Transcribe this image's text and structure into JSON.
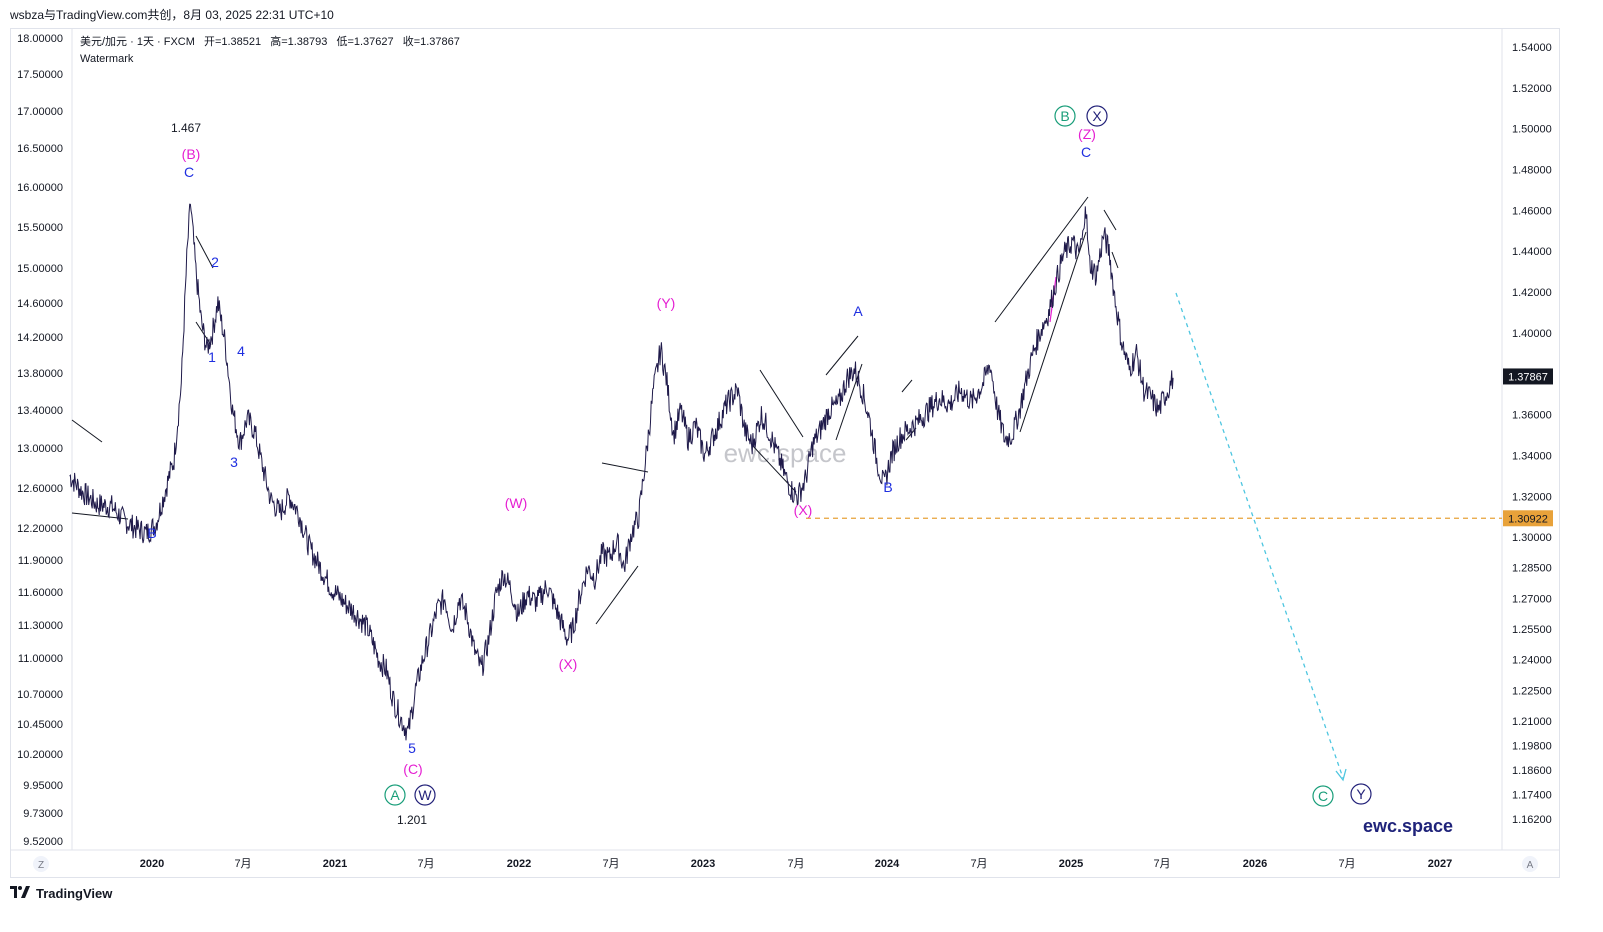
{
  "header": {
    "top_line": "wsbza与TradingView.com共创，8月 03, 2025 22:31 UTC+10",
    "symbol_line": "美元/加元 · 1天 · FXCM",
    "ohlc": [
      {
        "label": "开",
        "value": "=1.38521"
      },
      {
        "label": "高",
        "value": "=1.38793"
      },
      {
        "label": "低",
        "value": "=1.37627"
      },
      {
        "label": "收",
        "value": "=1.37867"
      }
    ],
    "indicator": "Watermark"
  },
  "footer": {
    "logo_text": "TradingView",
    "logo_icon": "tradingview-logo-icon"
  },
  "corner": {
    "left": "Z",
    "right": "A"
  },
  "watermarks": {
    "center": "ewc.space",
    "bottom_right": "ewc.space"
  },
  "colors": {
    "price_line": "#1f1a4a",
    "magenta": "#e51fd2",
    "blue": "#1f2fe0",
    "green": "#1a9e7a",
    "navy": "#24237a",
    "orange": "#e8a23a",
    "cyan": "#4ec6e0"
  },
  "chart_data": {
    "type": "line",
    "symbol": "USD/CAD",
    "interval": "1D",
    "right_axis": {
      "ticks": [
        "1.54000",
        "1.52000",
        "1.50000",
        "1.48000",
        "1.46000",
        "1.44000",
        "1.42000",
        "1.40000",
        "1.36000",
        "1.34000",
        "1.32000",
        "1.30000",
        "1.28500",
        "1.27000",
        "1.25500",
        "1.24000",
        "1.22500",
        "1.21000",
        "1.19800",
        "1.18600",
        "1.17400",
        "1.16200"
      ],
      "current_price": "1.37867",
      "level_price": "1.30922"
    },
    "left_axis": {
      "ticks": [
        "18.00000",
        "17.50000",
        "17.00000",
        "16.50000",
        "16.00000",
        "15.50000",
        "15.00000",
        "14.60000",
        "14.20000",
        "13.80000",
        "13.40000",
        "13.00000",
        "12.60000",
        "12.20000",
        "11.90000",
        "11.60000",
        "11.30000",
        "11.00000",
        "10.70000",
        "10.45000",
        "10.20000",
        "9.95000",
        "9.73000",
        "9.52000"
      ]
    },
    "x_axis": {
      "labels": [
        "2020",
        "7月",
        "2021",
        "7月",
        "2022",
        "7月",
        "2023",
        "7月",
        "2024",
        "7月",
        "2025",
        "7月",
        "2026",
        "7月",
        "2027"
      ]
    },
    "series": [
      {
        "values": [
          [
            2019.55,
            1.33
          ],
          [
            2019.62,
            1.322
          ],
          [
            2019.7,
            1.316
          ],
          [
            2019.78,
            1.315
          ],
          [
            2019.85,
            1.308
          ],
          [
            2019.9,
            1.305
          ],
          [
            2019.97,
            1.302
          ],
          [
            2020.02,
            1.306
          ],
          [
            2020.07,
            1.322
          ],
          [
            2020.12,
            1.338
          ],
          [
            2020.16,
            1.375
          ],
          [
            2020.19,
            1.436
          ],
          [
            2020.21,
            1.464
          ],
          [
            2020.24,
            1.43
          ],
          [
            2020.27,
            1.405
          ],
          [
            2020.3,
            1.392
          ],
          [
            2020.33,
            1.4
          ],
          [
            2020.36,
            1.415
          ],
          [
            2020.4,
            1.395
          ],
          [
            2020.44,
            1.362
          ],
          [
            2020.48,
            1.346
          ],
          [
            2020.52,
            1.358
          ],
          [
            2020.56,
            1.352
          ],
          [
            2020.6,
            1.336
          ],
          [
            2020.65,
            1.318
          ],
          [
            2020.7,
            1.312
          ],
          [
            2020.75,
            1.32
          ],
          [
            2020.8,
            1.312
          ],
          [
            2020.86,
            1.295
          ],
          [
            2020.92,
            1.285
          ],
          [
            2020.98,
            1.275
          ],
          [
            2021.05,
            1.268
          ],
          [
            2021.12,
            1.262
          ],
          [
            2021.18,
            1.255
          ],
          [
            2021.24,
            1.24
          ],
          [
            2021.28,
            1.235
          ],
          [
            2021.32,
            1.22
          ],
          [
            2021.36,
            1.211
          ],
          [
            2021.4,
            1.204
          ],
          [
            2021.44,
            1.225
          ],
          [
            2021.48,
            1.24
          ],
          [
            2021.52,
            1.252
          ],
          [
            2021.56,
            1.265
          ],
          [
            2021.6,
            1.27
          ],
          [
            2021.64,
            1.255
          ],
          [
            2021.68,
            1.27
          ],
          [
            2021.72,
            1.262
          ],
          [
            2021.76,
            1.245
          ],
          [
            2021.8,
            1.235
          ],
          [
            2021.84,
            1.25
          ],
          [
            2021.88,
            1.272
          ],
          [
            2021.92,
            1.282
          ],
          [
            2021.96,
            1.275
          ],
          [
            2022.0,
            1.262
          ],
          [
            2022.05,
            1.272
          ],
          [
            2022.1,
            1.268
          ],
          [
            2022.16,
            1.276
          ],
          [
            2022.22,
            1.262
          ],
          [
            2022.27,
            1.25
          ],
          [
            2022.3,
            1.255
          ],
          [
            2022.34,
            1.272
          ],
          [
            2022.38,
            1.285
          ],
          [
            2022.42,
            1.28
          ],
          [
            2022.46,
            1.292
          ],
          [
            2022.5,
            1.29
          ],
          [
            2022.54,
            1.298
          ],
          [
            2022.58,
            1.285
          ],
          [
            2022.62,
            1.302
          ],
          [
            2022.66,
            1.31
          ],
          [
            2022.7,
            1.34
          ],
          [
            2022.74,
            1.372
          ],
          [
            2022.78,
            1.392
          ],
          [
            2022.81,
            1.378
          ],
          [
            2022.85,
            1.35
          ],
          [
            2022.89,
            1.362
          ],
          [
            2022.93,
            1.348
          ],
          [
            2022.97,
            1.355
          ],
          [
            2023.02,
            1.34
          ],
          [
            2023.08,
            1.352
          ],
          [
            2023.14,
            1.365
          ],
          [
            2023.2,
            1.372
          ],
          [
            2023.24,
            1.352
          ],
          [
            2023.28,
            1.345
          ],
          [
            2023.33,
            1.36
          ],
          [
            2023.37,
            1.352
          ],
          [
            2023.42,
            1.34
          ],
          [
            2023.46,
            1.33
          ],
          [
            2023.5,
            1.322
          ],
          [
            2023.53,
            1.32
          ],
          [
            2023.57,
            1.328
          ],
          [
            2023.61,
            1.345
          ],
          [
            2023.65,
            1.352
          ],
          [
            2023.7,
            1.362
          ],
          [
            2023.75,
            1.365
          ],
          [
            2023.8,
            1.378
          ],
          [
            2023.84,
            1.382
          ],
          [
            2023.88,
            1.372
          ],
          [
            2023.92,
            1.358
          ],
          [
            2023.96,
            1.338
          ],
          [
            2024.0,
            1.325
          ],
          [
            2024.04,
            1.34
          ],
          [
            2024.08,
            1.348
          ],
          [
            2024.12,
            1.352
          ],
          [
            2024.18,
            1.356
          ],
          [
            2024.24,
            1.362
          ],
          [
            2024.3,
            1.368
          ],
          [
            2024.36,
            1.365
          ],
          [
            2024.42,
            1.372
          ],
          [
            2024.48,
            1.366
          ],
          [
            2024.54,
            1.375
          ],
          [
            2024.58,
            1.385
          ],
          [
            2024.62,
            1.362
          ],
          [
            2024.66,
            1.348
          ],
          [
            2024.7,
            1.35
          ],
          [
            2024.74,
            1.362
          ],
          [
            2024.78,
            1.378
          ],
          [
            2024.82,
            1.392
          ],
          [
            2024.86,
            1.402
          ],
          [
            2024.9,
            1.41
          ],
          [
            2024.94,
            1.425
          ],
          [
            2024.98,
            1.438
          ],
          [
            2025.03,
            1.445
          ],
          [
            2025.06,
            1.438
          ],
          [
            2025.09,
            1.448
          ],
          [
            2025.1,
            1.466
          ],
          [
            2025.12,
            1.435
          ],
          [
            2025.16,
            1.428
          ],
          [
            2025.2,
            1.448
          ],
          [
            2025.23,
            1.44
          ],
          [
            2025.26,
            1.418
          ],
          [
            2025.3,
            1.395
          ],
          [
            2025.34,
            1.382
          ],
          [
            2025.38,
            1.39
          ],
          [
            2025.42,
            1.372
          ],
          [
            2025.46,
            1.368
          ],
          [
            2025.5,
            1.362
          ],
          [
            2025.54,
            1.37
          ],
          [
            2025.58,
            1.378
          ]
        ]
      }
    ],
    "price_marks": [
      {
        "text": "1.467"
      },
      {
        "text": "1.201"
      }
    ],
    "wave_labels": [
      {
        "text": "(B)"
      },
      {
        "text": "C"
      },
      {
        "text": "2"
      },
      {
        "text": "1"
      },
      {
        "text": "4"
      },
      {
        "text": "3"
      },
      {
        "text": "B"
      },
      {
        "text": "5"
      },
      {
        "text": "(C)"
      },
      {
        "text": "A"
      },
      {
        "text": "W"
      },
      {
        "text": "(W)"
      },
      {
        "text": "(X)"
      },
      {
        "text": "(Y)"
      },
      {
        "text": "A"
      },
      {
        "text": "B"
      },
      {
        "text": "(X)"
      },
      {
        "text": "B"
      },
      {
        "text": "X"
      },
      {
        "text": "(Z)"
      },
      {
        "text": "C"
      },
      {
        "text": "C"
      },
      {
        "text": "Y"
      }
    ]
  }
}
